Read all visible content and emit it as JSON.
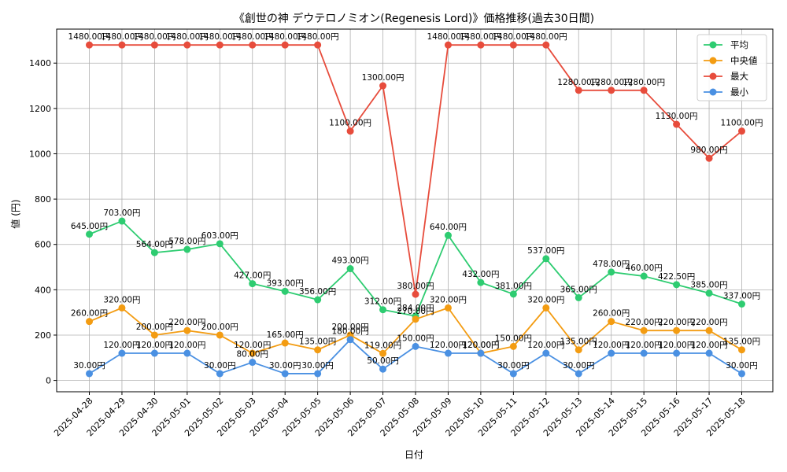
{
  "chart_data": {
    "type": "line",
    "title": "《創世の神 デウテロノミオン(Regenesis Lord)》価格推移(過去30日間)",
    "xlabel": "日付",
    "ylabel": "値 (円)",
    "ylim": [
      -50,
      1550
    ],
    "yticks": [
      0,
      200,
      400,
      600,
      800,
      1000,
      1200,
      1400
    ],
    "grid": true,
    "legend_position": "top-right",
    "value_suffix": "円",
    "categories": [
      "2025-04-28",
      "2025-04-29",
      "2025-04-30",
      "2025-05-01",
      "2025-05-02",
      "2025-05-03",
      "2025-05-04",
      "2025-05-05",
      "2025-05-06",
      "2025-05-07",
      "2025-05-08",
      "2025-05-09",
      "2025-05-10",
      "2025-05-11",
      "2025-05-12",
      "2025-05-13",
      "2025-05-14",
      "2025-05-15",
      "2025-05-16",
      "2025-05-17",
      "2025-05-18"
    ],
    "series": [
      {
        "name": "平均",
        "color": "#2ecc71",
        "values": [
          645,
          703,
          564,
          578,
          603,
          427,
          393,
          356,
          493,
          312,
          284,
          640,
          432,
          381,
          537,
          365,
          478,
          460,
          422.5,
          385,
          337
        ]
      },
      {
        "name": "中央値",
        "color": "#f39c12",
        "values": [
          260,
          320,
          200,
          220,
          200,
          120,
          165,
          135,
          200,
          119,
          270,
          320,
          120,
          150,
          320,
          135,
          260,
          220,
          220,
          220,
          135
        ]
      },
      {
        "name": "最大",
        "color": "#e74c3c",
        "values": [
          1480,
          1480,
          1480,
          1480,
          1480,
          1480,
          1480,
          1480,
          1100,
          1300,
          380,
          1480,
          1480,
          1480,
          1480,
          1280,
          1280,
          1280,
          1130,
          980,
          1100
        ]
      },
      {
        "name": "最小",
        "color": "#4a90e2",
        "values": [
          30,
          120,
          120,
          120,
          30,
          80,
          30,
          30,
          180,
          50,
          150,
          120,
          120,
          30,
          120,
          30,
          120,
          120,
          120,
          120,
          30
        ]
      }
    ]
  }
}
